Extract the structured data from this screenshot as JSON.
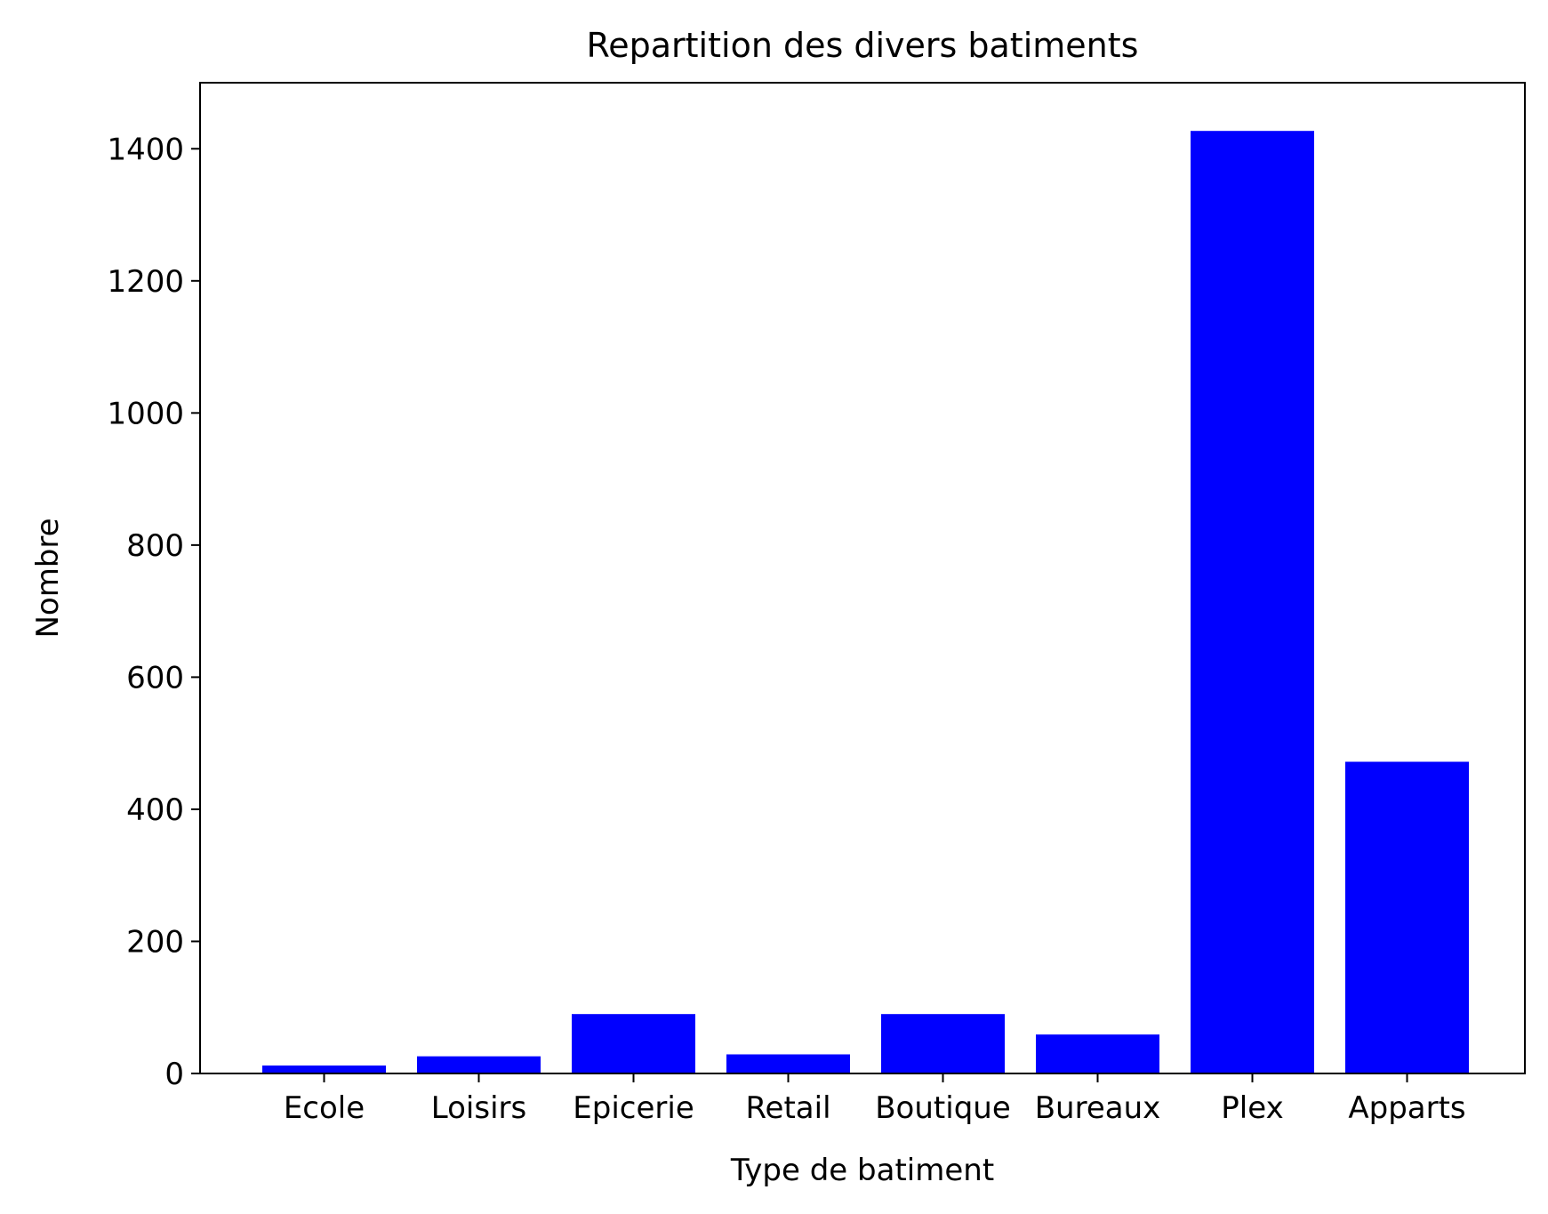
{
  "chart_data": {
    "type": "bar",
    "title": "Repartition des divers batiments",
    "xlabel": "Type de batiment",
    "ylabel": "Nombre",
    "categories": [
      "Ecole",
      "Loisirs",
      "Epicerie",
      "Retail",
      "Boutique",
      "Bureaux",
      "Plex",
      "Apparts"
    ],
    "values": [
      12,
      26,
      90,
      29,
      90,
      59,
      1427,
      472
    ],
    "ylim": [
      0,
      1500
    ],
    "yticks": [
      0,
      200,
      400,
      600,
      800,
      1000,
      1200,
      1400
    ],
    "grid": false,
    "legend": "none",
    "colors": {
      "bar": "#0000ff",
      "axis": "#000000",
      "background": "#ffffff"
    }
  }
}
